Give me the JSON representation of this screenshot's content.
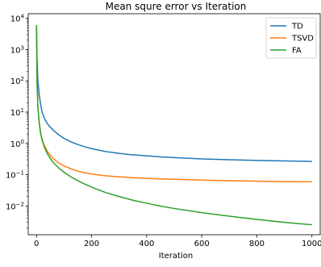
{
  "chart_data": {
    "type": "line",
    "title": "Mean squre error vs Iteration",
    "xlabel": "Iteration",
    "ylabel": "",
    "xlim": [
      -30,
      1030
    ],
    "ylim": [
      0.0012,
      14000
    ],
    "yscale": "log",
    "grid": false,
    "legend_position": "top-right",
    "x_ticks": [
      0,
      200,
      400,
      600,
      800,
      1000
    ],
    "x_tick_labels": [
      "0",
      "200",
      "400",
      "600",
      "800",
      "1000"
    ],
    "y_ticks": [
      0.01,
      0.1,
      1,
      10,
      100,
      1000,
      10000
    ],
    "y_tick_labels": [
      "10^-2",
      "10^-1",
      "10^0",
      "10^1",
      "10^2",
      "10^3",
      "10^4"
    ],
    "x": [
      0,
      2,
      5,
      10,
      15,
      20,
      30,
      40,
      50,
      60,
      80,
      100,
      125,
      150,
      175,
      200,
      250,
      300,
      350,
      400,
      450,
      500,
      600,
      700,
      800,
      900,
      1000
    ],
    "series": [
      {
        "name": "TD",
        "color": "#1f77b4",
        "values": [
          6000,
          500,
          100,
          35,
          18,
          10,
          6,
          4.2,
          3.3,
          2.7,
          1.9,
          1.45,
          1.12,
          0.92,
          0.78,
          0.68,
          0.55,
          0.48,
          0.43,
          0.4,
          0.37,
          0.35,
          0.32,
          0.3,
          0.285,
          0.275,
          0.265
        ]
      },
      {
        "name": "TSVD",
        "color": "#ff7f0e",
        "values": [
          6000,
          100,
          15,
          4.5,
          2.2,
          1.35,
          0.8,
          0.55,
          0.42,
          0.33,
          0.24,
          0.19,
          0.155,
          0.13,
          0.115,
          0.105,
          0.092,
          0.085,
          0.08,
          0.076,
          0.073,
          0.071,
          0.067,
          0.064,
          0.062,
          0.06,
          0.059
        ]
      },
      {
        "name": "FA",
        "color": "#2ca02c",
        "values": [
          6000,
          100,
          15,
          4.5,
          2.1,
          1.3,
          0.7,
          0.46,
          0.33,
          0.25,
          0.165,
          0.12,
          0.085,
          0.064,
          0.05,
          0.04,
          0.027,
          0.02,
          0.0152,
          0.0122,
          0.0099,
          0.0083,
          0.0061,
          0.0047,
          0.0037,
          0.003,
          0.0025
        ]
      }
    ]
  }
}
